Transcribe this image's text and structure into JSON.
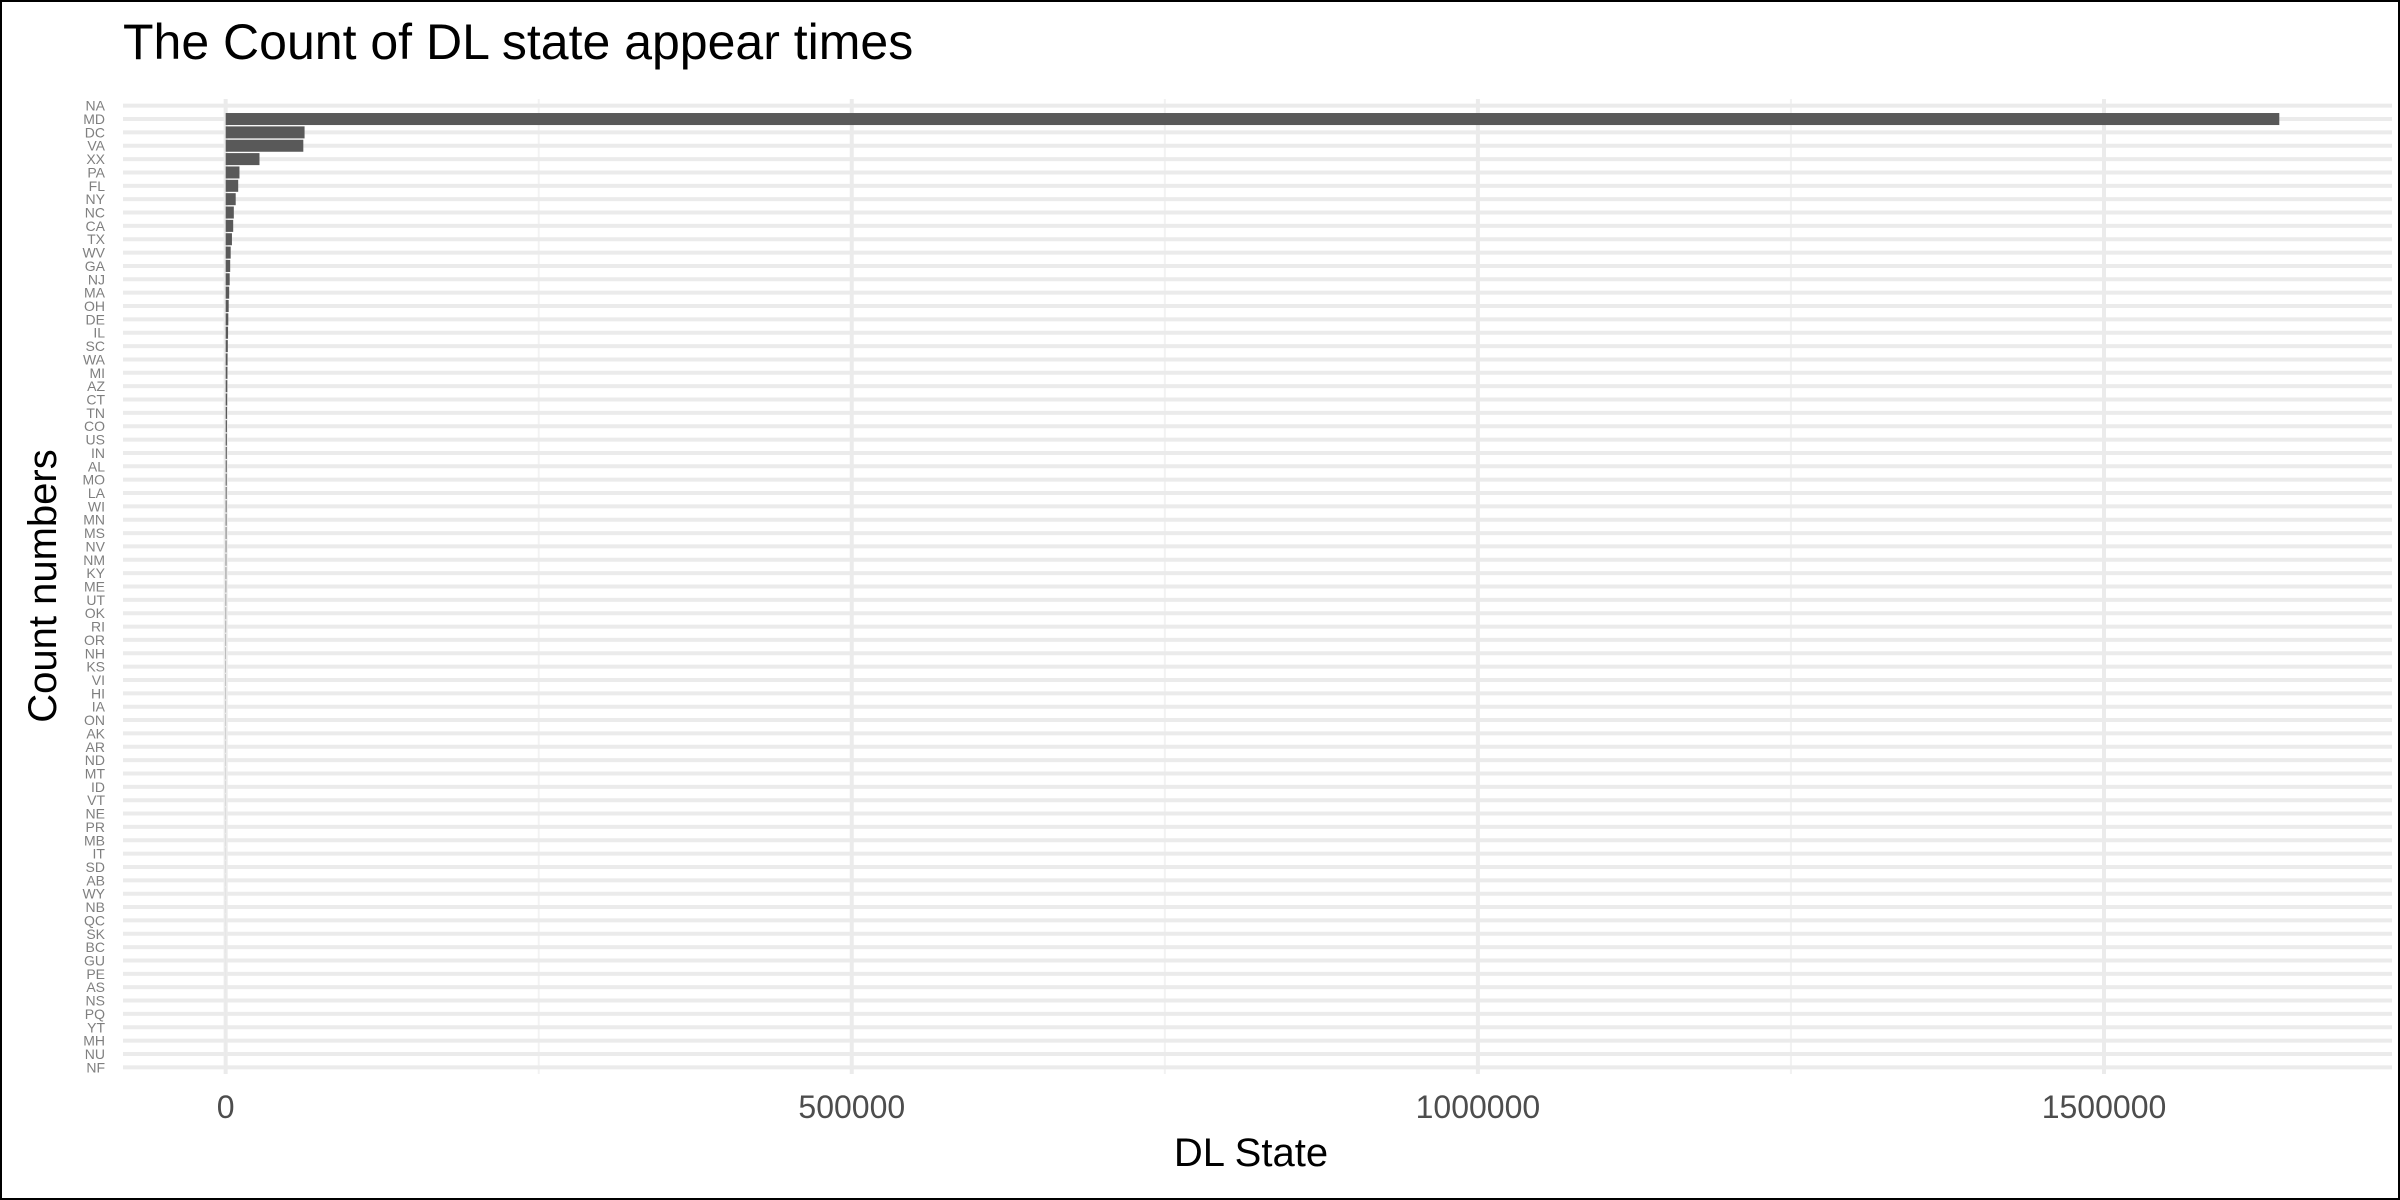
{
  "chart_data": {
    "type": "bar",
    "orientation": "horizontal",
    "title": "The Count of DL state appear times",
    "xlabel": "DL State",
    "ylabel": "Count numbers",
    "xlim": [
      -82000,
      1730000
    ],
    "x_ticks": [
      0,
      500000,
      1000000,
      1500000
    ],
    "x_tick_labels": [
      "0",
      "500000",
      "1000000",
      "1500000"
    ],
    "grid": true,
    "colors": {
      "bar": "#595959",
      "grid_major": "#ebebeb",
      "grid_minor": "#f2f2f2",
      "tick_text": "#4d4d4d",
      "category_text": "#7f7f7f"
    },
    "categories": [
      "NA",
      "MD",
      "DC",
      "VA",
      "XX",
      "PA",
      "FL",
      "NY",
      "NC",
      "CA",
      "TX",
      "WV",
      "GA",
      "NJ",
      "MA",
      "OH",
      "DE",
      "IL",
      "SC",
      "WA",
      "MI",
      "AZ",
      "CT",
      "TN",
      "CO",
      "US",
      "IN",
      "AL",
      "MO",
      "LA",
      "WI",
      "MN",
      "MS",
      "NV",
      "NM",
      "KY",
      "ME",
      "UT",
      "OK",
      "RI",
      "OR",
      "NH",
      "KS",
      "VI",
      "HI",
      "IA",
      "ON",
      "AK",
      "AR",
      "ND",
      "MT",
      "ID",
      "VT",
      "NE",
      "PR",
      "MB",
      "IT",
      "SD",
      "AB",
      "WY",
      "NB",
      "QC",
      "SK",
      "BC",
      "GU",
      "PE",
      "AS",
      "NS",
      "PQ",
      "YT",
      "MH",
      "NU",
      "NF"
    ],
    "values": [
      0,
      1640000,
      63000,
      62000,
      27000,
      11000,
      10000,
      8000,
      6500,
      6000,
      5000,
      4000,
      3600,
      3200,
      2800,
      2400,
      2100,
      1900,
      1700,
      1500,
      1400,
      1300,
      1200,
      1100,
      1000,
      950,
      900,
      850,
      800,
      750,
      700,
      650,
      600,
      550,
      500,
      460,
      420,
      380,
      350,
      320,
      290,
      260,
      240,
      220,
      200,
      180,
      160,
      145,
      130,
      120,
      110,
      100,
      90,
      80,
      72,
      64,
      56,
      50,
      44,
      38,
      33,
      28,
      24,
      20,
      17,
      14,
      12,
      10,
      8,
      6,
      4,
      3,
      2
    ]
  }
}
